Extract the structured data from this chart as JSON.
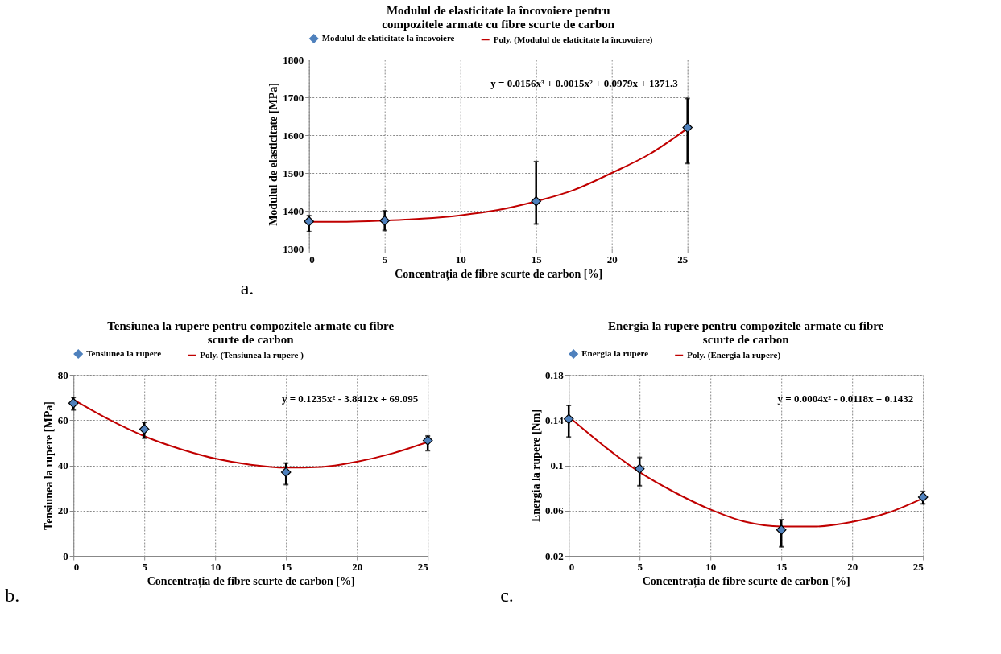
{
  "chart_data": [
    {
      "type": "scatter",
      "title": "Modulul de elasticitate la încovoiere pentru\ncompozitele armate cu fibre scurte de carbon",
      "xlabel": "Concentrația de fibre scurte de carbon [%]",
      "ylabel": "Modulul de elasticitate [MPa]",
      "annotations": [
        "y = 0.0156x³ + 0.0015x² + 0.0979x + 1371.3",
        "a."
      ],
      "x": [
        0,
        5,
        15,
        25
      ],
      "xlim": [
        0,
        25
      ],
      "xticks": [
        0,
        5,
        10,
        15,
        20,
        25
      ],
      "ylim": [
        1300,
        1800
      ],
      "yticks": [
        1300,
        1400,
        1500,
        1600,
        1700,
        1800
      ],
      "grid": true,
      "legend": "top",
      "series": [
        {
          "name": "Modulul de elaticitate la încovoiere",
          "color": "#4f81bd",
          "marker": "diamond",
          "values": [
            1372,
            1374,
            1425,
            1620
          ],
          "errors": [
            [
              1345,
              1387
            ],
            [
              1348,
              1400
            ],
            [
              1365,
              1530
            ],
            [
              1525,
              1697
            ]
          ]
        },
        {
          "name": "Poly. (Modulul de elaticitate la încovoiere)",
          "type": "line",
          "color": "#c00000",
          "line_style": "solid",
          "x": [
            0,
            2.5,
            5,
            7.5,
            10,
            12.5,
            15,
            17.5,
            20,
            22.5,
            25
          ],
          "values": [
            1371,
            1371,
            1374,
            1379,
            1388,
            1402,
            1425,
            1455,
            1500,
            1550,
            1618
          ]
        }
      ]
    },
    {
      "type": "scatter",
      "title": "Tensiunea la rupere pentru compozitele armate cu fibre\nscurte de carbon",
      "xlabel": "Concentrația de fibre scurte de carbon [%]",
      "ylabel": "Tensiunea la rupere [MPa]",
      "annotations": [
        "y = 0.1235x² - 3.8412x + 69.095",
        "b."
      ],
      "x": [
        0,
        5,
        15,
        25
      ],
      "xlim": [
        0,
        25
      ],
      "xticks": [
        0,
        5,
        10,
        15,
        20,
        25
      ],
      "ylim": [
        0,
        80
      ],
      "yticks": [
        0,
        20,
        40,
        60,
        80
      ],
      "grid": true,
      "legend": "top",
      "series": [
        {
          "name": "Tensiunea la rupere",
          "color": "#4f81bd",
          "marker": "diamond",
          "values": [
            67.5,
            56,
            37,
            51
          ],
          "errors": [
            [
              64.5,
              70
            ],
            [
              52,
              59
            ],
            [
              31.5,
              41
            ],
            [
              46.5,
              53
            ]
          ]
        },
        {
          "name": "Poly. (Tensiunea la rupere )",
          "type": "line",
          "color": "#c00000",
          "line_style": "solid",
          "x": [
            0,
            2.5,
            5,
            7.5,
            10,
            12.5,
            15,
            17.5,
            20,
            22.5,
            25
          ],
          "values": [
            69,
            60.3,
            52.9,
            47.3,
            43,
            40.3,
            39,
            39.3,
            41.6,
            45.3,
            50.3
          ]
        }
      ]
    },
    {
      "type": "scatter",
      "title": "Energia la rupere pentru compozitele armate cu fibre\nscurte de carbon",
      "xlabel": "Concentrația de fibre scurte de carbon [%]",
      "ylabel": "Energia la rupere [Nm]",
      "annotations": [
        "y = 0.0004x² - 0.0118x + 0.1432",
        "c."
      ],
      "x": [
        0,
        5,
        15,
        25
      ],
      "xlim": [
        0,
        25
      ],
      "xticks": [
        0,
        5,
        10,
        15,
        20,
        25
      ],
      "ylim": [
        0.02,
        0.18
      ],
      "yticks": [
        0.02,
        0.06,
        0.1,
        0.14,
        0.18
      ],
      "grid": true,
      "legend": "top",
      "series": [
        {
          "name": "Energia la rupere",
          "color": "#4f81bd",
          "marker": "diamond",
          "values": [
            0.141,
            0.097,
            0.043,
            0.072
          ],
          "errors": [
            [
              0.125,
              0.153
            ],
            [
              0.082,
              0.107
            ],
            [
              0.028,
              0.052
            ],
            [
              0.066,
              0.077
            ]
          ]
        },
        {
          "name": "Poly. (Energia la rupere)",
          "type": "line",
          "color": "#c00000",
          "line_style": "solid",
          "x": [
            0,
            2.5,
            5,
            7.5,
            10,
            12.5,
            15,
            17.5,
            20,
            22.5,
            25
          ],
          "values": [
            0.143,
            0.117,
            0.094,
            0.076,
            0.061,
            0.05,
            0.046,
            0.046,
            0.05,
            0.058,
            0.071
          ]
        }
      ]
    }
  ]
}
